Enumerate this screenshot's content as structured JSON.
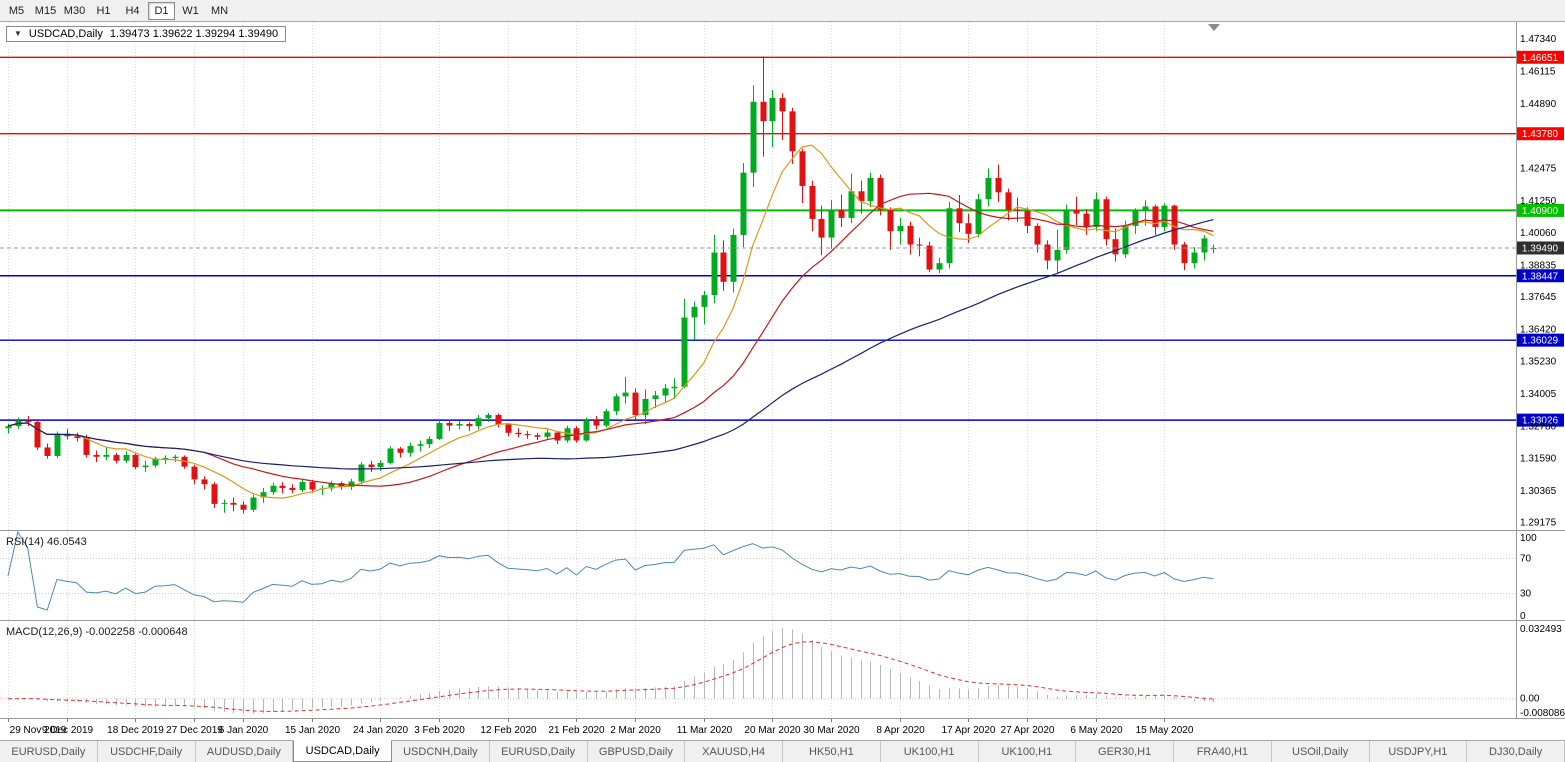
{
  "toolbar": {
    "timeframes": [
      "M5",
      "M15",
      "M30",
      "H1",
      "H4",
      "D1",
      "W1",
      "MN"
    ],
    "active": "D1"
  },
  "chart": {
    "title": "USDCAD,Daily",
    "ohlc_text": "1.39473 1.39622 1.39294 1.39490"
  },
  "chart_data": {
    "type": "candlestick",
    "symbol": "USDCAD",
    "timeframe": "Daily",
    "ylim": [
      1.289,
      1.476
    ],
    "colors": {
      "up_candle": "#00ab20",
      "down_candle": "#e21212",
      "grid": "#dcdcdc",
      "histogram": "#b6b6b6",
      "signal": "#e03030",
      "current_price_line": "#9a9a9a",
      "current_price_badge": "#2f2f2f"
    },
    "y_ticks": [
      "1.47340",
      "1.46115",
      "1.44890",
      "1.42475",
      "1.41250",
      "1.40060",
      "1.38835",
      "1.37645",
      "1.36420",
      "1.35230",
      "1.34005",
      "1.32780",
      "1.31590",
      "1.30365",
      "1.29175"
    ],
    "levels": [
      {
        "label": "1.46651",
        "value": 1.46651,
        "color": "#ff0000",
        "width": 1.4
      },
      {
        "label": "1.43780",
        "value": 1.4378,
        "color": "#ff0000",
        "width": 1.4
      },
      {
        "label": "1.40900",
        "value": 1.409,
        "color": "#00c000",
        "width": 2
      },
      {
        "label": "1.38447",
        "value": 1.38447,
        "color": "#0000cd",
        "width": 1.4
      },
      {
        "label": "1.36029",
        "value": 1.36029,
        "color": "#0000cd",
        "width": 1.4
      },
      {
        "label": "1.33026",
        "value": 1.33026,
        "color": "#0000cd",
        "width": 1.4
      }
    ],
    "current_price": {
      "value": 1.3949,
      "label": "1.39490"
    },
    "moving_averages": [
      {
        "period": 8,
        "color": "#d99a1a"
      },
      {
        "period": 21,
        "color": "#c01a1a"
      },
      {
        "period": 55,
        "color": "#16216e"
      }
    ],
    "indicators": {
      "rsi": {
        "label": "RSI(14) 46.0543",
        "period": 14,
        "value": 46.0543,
        "levels": [
          100,
          70,
          30,
          0
        ],
        "color": "#4a89b8"
      },
      "macd": {
        "label": "MACD(12,26,9) -0.002258 -0.000648",
        "fast": 12,
        "slow": 26,
        "signal": 9,
        "value": -0.002258,
        "signal_value": -0.000648,
        "axis": [
          "0.032493",
          "0.00",
          "-0.008086"
        ]
      }
    },
    "x_labels": [
      {
        "text": "29 Nov 2019",
        "index": 0
      },
      {
        "text": "9 Dec 2019",
        "index": 6
      },
      {
        "text": "18 Dec 2019",
        "index": 13
      },
      {
        "text": "27 Dec 2019",
        "index": 19
      },
      {
        "text": "6 Jan 2020",
        "index": 24
      },
      {
        "text": "15 Jan 2020",
        "index": 31
      },
      {
        "text": "24 Jan 2020",
        "index": 38
      },
      {
        "text": "3 Feb 2020",
        "index": 44
      },
      {
        "text": "12 Feb 2020",
        "index": 51
      },
      {
        "text": "21 Feb 2020",
        "index": 58
      },
      {
        "text": "2 Mar 2020",
        "index": 64
      },
      {
        "text": "11 Mar 2020",
        "index": 71
      },
      {
        "text": "20 Mar 2020",
        "index": 78
      },
      {
        "text": "30 Mar 2020",
        "index": 84
      },
      {
        "text": "8 Apr 2020",
        "index": 91
      },
      {
        "text": "17 Apr 2020",
        "index": 98
      },
      {
        "text": "27 Apr 2020",
        "index": 104
      },
      {
        "text": "6 May 2020",
        "index": 111
      },
      {
        "text": "15 May 2020",
        "index": 118
      }
    ],
    "ohlc": [
      [
        "2019-11-29",
        1.3272,
        1.329,
        1.3252,
        1.328
      ],
      [
        "2019-12-02",
        1.328,
        1.3312,
        1.327,
        1.33
      ],
      [
        "2019-12-03",
        1.33,
        1.3318,
        1.328,
        1.3296
      ],
      [
        "2019-12-04",
        1.3296,
        1.3302,
        1.319,
        1.32
      ],
      [
        "2019-12-05",
        1.32,
        1.3215,
        1.3158,
        1.3168
      ],
      [
        "2019-12-06",
        1.3168,
        1.326,
        1.316,
        1.3252
      ],
      [
        "2019-12-09",
        1.3252,
        1.327,
        1.323,
        1.3242
      ],
      [
        "2019-12-10",
        1.3242,
        1.3255,
        1.3222,
        1.3235
      ],
      [
        "2019-12-11",
        1.3235,
        1.3248,
        1.3162,
        1.3172
      ],
      [
        "2019-12-12",
        1.3172,
        1.3188,
        1.3145,
        1.3165
      ],
      [
        "2019-12-13",
        1.3165,
        1.32,
        1.3152,
        1.3172
      ],
      [
        "2019-12-16",
        1.3172,
        1.318,
        1.314,
        1.315
      ],
      [
        "2019-12-17",
        1.315,
        1.3186,
        1.3142,
        1.3172
      ],
      [
        "2019-12-18",
        1.3172,
        1.3178,
        1.3118,
        1.3126
      ],
      [
        "2019-12-19",
        1.3126,
        1.315,
        1.3108,
        1.3132
      ],
      [
        "2019-12-20",
        1.3132,
        1.3165,
        1.3125,
        1.3158
      ],
      [
        "2019-12-23",
        1.3158,
        1.317,
        1.3138,
        1.316
      ],
      [
        "2019-12-24",
        1.316,
        1.3172,
        1.3146,
        1.3165
      ],
      [
        "2019-12-26",
        1.3165,
        1.317,
        1.312,
        1.3128
      ],
      [
        "2019-12-27",
        1.3128,
        1.3135,
        1.3062,
        1.308
      ],
      [
        "2019-12-30",
        1.308,
        1.3092,
        1.3042,
        1.3062
      ],
      [
        "2019-12-31",
        1.3062,
        1.307,
        1.2972,
        1.2988
      ],
      [
        "2020-01-02",
        1.2988,
        1.3005,
        1.2955,
        1.2992
      ],
      [
        "2020-01-03",
        1.2992,
        1.3012,
        1.296,
        1.2985
      ],
      [
        "2020-01-06",
        1.2985,
        1.2998,
        1.2952,
        1.2966
      ],
      [
        "2020-01-07",
        1.2966,
        1.3022,
        1.2958,
        1.3012
      ],
      [
        "2020-01-08",
        1.3012,
        1.3048,
        1.2992,
        1.3032
      ],
      [
        "2020-01-09",
        1.3032,
        1.3068,
        1.3022,
        1.3056
      ],
      [
        "2020-01-10",
        1.3056,
        1.307,
        1.3028,
        1.3048
      ],
      [
        "2020-01-13",
        1.3048,
        1.3062,
        1.3028,
        1.304
      ],
      [
        "2020-01-14",
        1.304,
        1.308,
        1.3032,
        1.307
      ],
      [
        "2020-01-15",
        1.307,
        1.3078,
        1.303,
        1.3042
      ],
      [
        "2020-01-16",
        1.3042,
        1.3058,
        1.3022,
        1.3046
      ],
      [
        "2020-01-17",
        1.3046,
        1.3075,
        1.3035,
        1.3066
      ],
      [
        "2020-01-20",
        1.3066,
        1.3072,
        1.3042,
        1.3052
      ],
      [
        "2020-01-21",
        1.3052,
        1.3082,
        1.304,
        1.3072
      ],
      [
        "2020-01-22",
        1.3072,
        1.3145,
        1.3062,
        1.3136
      ],
      [
        "2020-01-23",
        1.3136,
        1.315,
        1.3108,
        1.3126
      ],
      [
        "2020-01-24",
        1.3126,
        1.3152,
        1.3112,
        1.3142
      ],
      [
        "2020-01-27",
        1.3142,
        1.3205,
        1.3136,
        1.3196
      ],
      [
        "2020-01-28",
        1.3196,
        1.3202,
        1.3162,
        1.318
      ],
      [
        "2020-01-29",
        1.318,
        1.3218,
        1.3165,
        1.3206
      ],
      [
        "2020-01-30",
        1.3206,
        1.3226,
        1.3185,
        1.3212
      ],
      [
        "2020-01-31",
        1.3212,
        1.3242,
        1.3198,
        1.3232
      ],
      [
        "2020-02-03",
        1.3232,
        1.3302,
        1.3228,
        1.3292
      ],
      [
        "2020-02-04",
        1.3292,
        1.3304,
        1.3262,
        1.3282
      ],
      [
        "2020-02-05",
        1.3282,
        1.33,
        1.3268,
        1.3288
      ],
      [
        "2020-02-06",
        1.3288,
        1.3295,
        1.3262,
        1.328
      ],
      [
        "2020-02-07",
        1.328,
        1.3322,
        1.3268,
        1.331
      ],
      [
        "2020-02-10",
        1.331,
        1.333,
        1.3295,
        1.3322
      ],
      [
        "2020-02-11",
        1.3322,
        1.3328,
        1.3275,
        1.3286
      ],
      [
        "2020-02-12",
        1.3286,
        1.3292,
        1.3242,
        1.3255
      ],
      [
        "2020-02-13",
        1.3255,
        1.3272,
        1.3238,
        1.325
      ],
      [
        "2020-02-14",
        1.325,
        1.3262,
        1.3232,
        1.3246
      ],
      [
        "2020-02-17",
        1.3246,
        1.3255,
        1.3228,
        1.324
      ],
      [
        "2020-02-18",
        1.324,
        1.3268,
        1.3228,
        1.3256
      ],
      [
        "2020-02-19",
        1.3256,
        1.3262,
        1.3212,
        1.3226
      ],
      [
        "2020-02-20",
        1.3226,
        1.3282,
        1.3218,
        1.3272
      ],
      [
        "2020-02-21",
        1.3272,
        1.328,
        1.3218,
        1.3226
      ],
      [
        "2020-02-24",
        1.3226,
        1.3312,
        1.3222,
        1.3302
      ],
      [
        "2020-02-25",
        1.3302,
        1.3318,
        1.3268,
        1.3282
      ],
      [
        "2020-02-26",
        1.3282,
        1.3345,
        1.3275,
        1.3336
      ],
      [
        "2020-02-27",
        1.3336,
        1.3402,
        1.3322,
        1.3392
      ],
      [
        "2020-02-28",
        1.3392,
        1.3465,
        1.3365,
        1.3406
      ],
      [
        "2020-03-02",
        1.3406,
        1.3422,
        1.3305,
        1.3322
      ],
      [
        "2020-03-03",
        1.3322,
        1.3418,
        1.3288,
        1.3382
      ],
      [
        "2020-03-04",
        1.3382,
        1.3412,
        1.3348,
        1.3395
      ],
      [
        "2020-03-05",
        1.3395,
        1.3438,
        1.3372,
        1.3422
      ],
      [
        "2020-03-06",
        1.3422,
        1.346,
        1.3382,
        1.3428
      ],
      [
        "2020-03-09",
        1.3428,
        1.3758,
        1.3422,
        1.3688
      ],
      [
        "2020-03-10",
        1.3688,
        1.3748,
        1.3605,
        1.3728
      ],
      [
        "2020-03-11",
        1.3728,
        1.3788,
        1.3662,
        1.3772
      ],
      [
        "2020-03-12",
        1.3772,
        1.3998,
        1.3742,
        1.3932
      ],
      [
        "2020-03-13",
        1.3932,
        1.3978,
        1.3788,
        1.3822
      ],
      [
        "2020-03-16",
        1.3822,
        1.4022,
        1.3782,
        1.3998
      ],
      [
        "2020-03-17",
        1.3998,
        1.4268,
        1.3952,
        1.4232
      ],
      [
        "2020-03-18",
        1.4232,
        1.456,
        1.4178,
        1.4498
      ],
      [
        "2020-03-19",
        1.4498,
        1.4669,
        1.4292,
        1.4425
      ],
      [
        "2020-03-20",
        1.4425,
        1.4542,
        1.4328,
        1.4512
      ],
      [
        "2020-03-23",
        1.4512,
        1.453,
        1.4355,
        1.4462
      ],
      [
        "2020-03-24",
        1.4462,
        1.4475,
        1.4265,
        1.4312
      ],
      [
        "2020-03-25",
        1.4312,
        1.4322,
        1.4118,
        1.4182
      ],
      [
        "2020-03-26",
        1.4182,
        1.4202,
        1.4012,
        1.4058
      ],
      [
        "2020-03-27",
        1.4058,
        1.4108,
        1.3922,
        1.3988
      ],
      [
        "2020-03-30",
        1.3988,
        1.4128,
        1.3945,
        1.4092
      ],
      [
        "2020-03-31",
        1.4092,
        1.415,
        1.4028,
        1.4062
      ],
      [
        "2020-04-01",
        1.4062,
        1.4228,
        1.4042,
        1.4162
      ],
      [
        "2020-04-02",
        1.4162,
        1.4202,
        1.4078,
        1.4125
      ],
      [
        "2020-04-03",
        1.4125,
        1.4232,
        1.4102,
        1.4212
      ],
      [
        "2020-04-06",
        1.4212,
        1.4225,
        1.4072,
        1.4092
      ],
      [
        "2020-04-07",
        1.4092,
        1.4102,
        1.3942,
        1.4012
      ],
      [
        "2020-04-08",
        1.4012,
        1.4062,
        1.3962,
        1.4032
      ],
      [
        "2020-04-09",
        1.4032,
        1.4048,
        1.3925,
        1.3962
      ],
      [
        "2020-04-10",
        1.3962,
        1.3988,
        1.3918,
        1.3958
      ],
      [
        "2020-04-13",
        1.3958,
        1.3972,
        1.3858,
        1.3868
      ],
      [
        "2020-04-14",
        1.3868,
        1.3912,
        1.3855,
        1.3892
      ],
      [
        "2020-04-15",
        1.3892,
        1.4122,
        1.3872,
        1.4098
      ],
      [
        "2020-04-16",
        1.4098,
        1.4148,
        1.4008,
        1.4042
      ],
      [
        "2020-04-17",
        1.4042,
        1.4078,
        1.3968,
        1.4002
      ],
      [
        "2020-04-20",
        1.4002,
        1.4152,
        1.3988,
        1.4132
      ],
      [
        "2020-04-21",
        1.4132,
        1.4248,
        1.4105,
        1.4212
      ],
      [
        "2020-04-22",
        1.4212,
        1.4262,
        1.4122,
        1.4158
      ],
      [
        "2020-04-23",
        1.4158,
        1.4172,
        1.4052,
        1.4092
      ],
      [
        "2020-04-24",
        1.4092,
        1.4138,
        1.4048,
        1.4088
      ],
      [
        "2020-04-27",
        1.4088,
        1.4102,
        1.4005,
        1.4032
      ],
      [
        "2020-04-28",
        1.4032,
        1.4042,
        1.3932,
        1.3962
      ],
      [
        "2020-04-29",
        1.3962,
        1.3978,
        1.3868,
        1.3902
      ],
      [
        "2020-04-30",
        1.3902,
        1.4018,
        1.3852,
        1.3942
      ],
      [
        "2020-05-01",
        1.3942,
        1.4112,
        1.3928,
        1.4092
      ],
      [
        "2020-05-04",
        1.4092,
        1.4142,
        1.4035,
        1.4078
      ],
      [
        "2020-05-05",
        1.4078,
        1.4095,
        1.3998,
        1.4028
      ],
      [
        "2020-05-06",
        1.4028,
        1.4158,
        1.4012,
        1.4132
      ],
      [
        "2020-05-07",
        1.4132,
        1.4142,
        1.3958,
        1.3982
      ],
      [
        "2020-05-08",
        1.3982,
        1.4022,
        1.3898,
        1.3925
      ],
      [
        "2020-05-11",
        1.3925,
        1.4052,
        1.3912,
        1.4032
      ],
      [
        "2020-05-12",
        1.4032,
        1.4098,
        1.4002,
        1.4088
      ],
      [
        "2020-05-13",
        1.4088,
        1.4128,
        1.4032,
        1.4105
      ],
      [
        "2020-05-14",
        1.4105,
        1.4112,
        1.3998,
        1.4028
      ],
      [
        "2020-05-15",
        1.4028,
        1.4118,
        1.4012,
        1.4108
      ],
      [
        "2020-05-18",
        1.4108,
        1.4112,
        1.3942,
        1.3962
      ],
      [
        "2020-05-19",
        1.3962,
        1.3972,
        1.3866,
        1.3892
      ],
      [
        "2020-05-20",
        1.3892,
        1.3952,
        1.3872,
        1.3932
      ],
      [
        "2020-05-21",
        1.3932,
        1.3998,
        1.3902,
        1.3985
      ],
      [
        "2020-05-22",
        1.39473,
        1.39622,
        1.39294,
        1.3949
      ]
    ]
  },
  "tabs": {
    "active_index": 3,
    "items": [
      "EURUSD,Daily",
      "USDCHF,Daily",
      "AUDUSD,Daily",
      "USDCAD,Daily",
      "USDCNH,Daily",
      "EURUSD,Daily",
      "GBPUSD,Daily",
      "XAUUSD,H4",
      "HK50,H1",
      "UK100,H1",
      "UK100,H1",
      "GER30,H1",
      "FRA40,H1",
      "USOil,Daily",
      "USDJPY,H1",
      "DJ30,Daily"
    ]
  }
}
